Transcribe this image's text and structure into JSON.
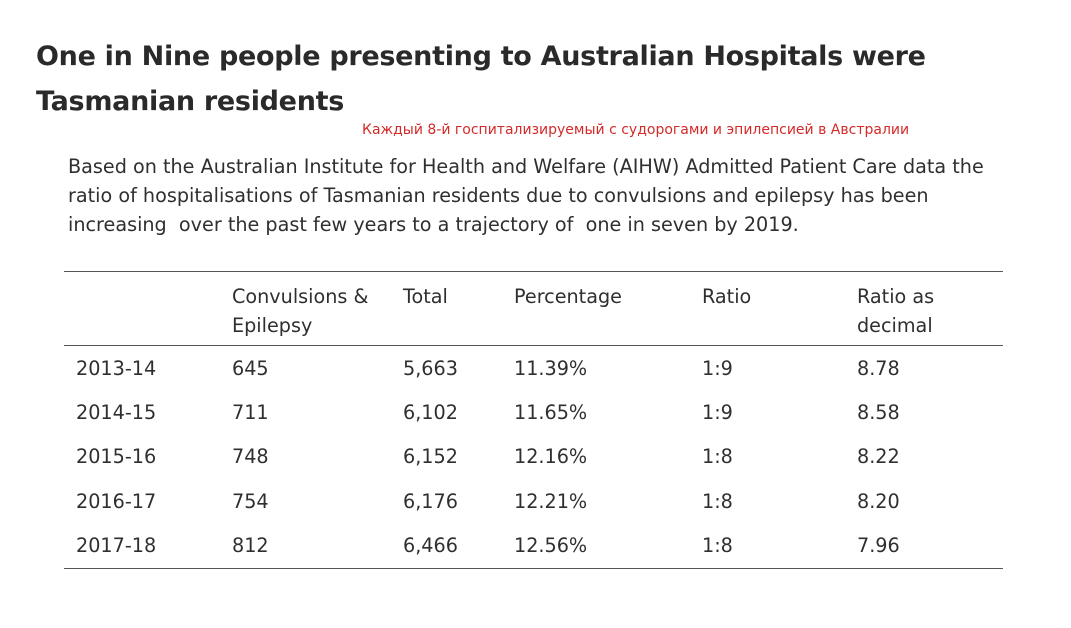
{
  "heading": {
    "line1": "One in Nine people presenting to Australian Hospitals were",
    "line2": "Tasmanian residents"
  },
  "annotation": "Каждый 8-й госпитализируемый с судорогами и эпилепсией в Австралии",
  "intro": {
    "line1": "Based on the Australian Institute for Health and Welfare (AIHW) Admitted Patient Care data the",
    "line2": "ratio of hospitalisations of Tasmanian residents due to convulsions and epilepsy has been",
    "line3": "increasing  over the past few years to a trajectory of  one in seven by 2019."
  },
  "table": {
    "headers": [
      {
        "line1": "",
        "line2": ""
      },
      {
        "line1": "Convulsions &",
        "line2": "Epilepsy"
      },
      {
        "line1": "Total",
        "line2": ""
      },
      {
        "line1": "Percentage",
        "line2": ""
      },
      {
        "line1": "Ratio",
        "line2": ""
      },
      {
        "line1": "Ratio as",
        "line2": "decimal"
      }
    ],
    "rows": [
      [
        "2013-14",
        "645",
        "5,663",
        "11.39%",
        "1:9",
        "8.78"
      ],
      [
        "2014-15",
        "711",
        "6,102",
        "11.65%",
        "1:9",
        "8.58"
      ],
      [
        "2015-16",
        "748",
        "6,152",
        "12.16%",
        "1:8",
        "8.22"
      ],
      [
        "2016-17",
        "754",
        "6,176",
        "12.21%",
        "1:8",
        "8.20"
      ],
      [
        "2017-18",
        "812",
        "6,466",
        "12.56%",
        "1:8",
        "7.96"
      ]
    ]
  }
}
